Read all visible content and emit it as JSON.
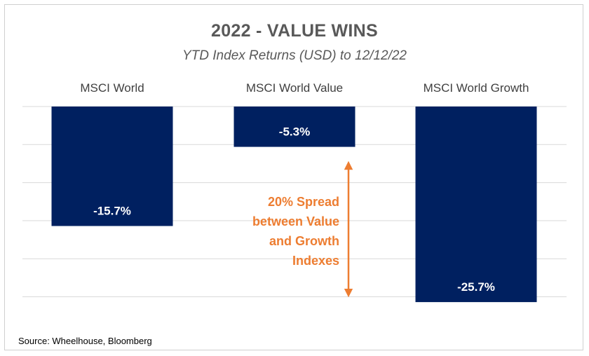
{
  "chart_data": {
    "type": "bar",
    "title": "2022 - VALUE WINS",
    "subtitle": "YTD Index Returns (USD) to 12/12/22",
    "categories": [
      "MSCI World",
      "MSCI World Value",
      "MSCI World Growth"
    ],
    "values": [
      -15.7,
      -5.3,
      -25.7
    ],
    "data_labels": [
      "-15.7%",
      "-5.3%",
      "-25.7%"
    ],
    "ylim": [
      -25,
      0
    ],
    "grid": true,
    "xlabel": "",
    "ylabel": "",
    "annotation": {
      "lines": [
        "20% Spread",
        "between Value",
        "and Growth",
        "Indexes"
      ]
    },
    "source": "Source: Wheelhouse, Bloomberg"
  },
  "colors": {
    "bar": "#002060",
    "annotation": "#ed7d31",
    "grid": "#d9d9d9",
    "title": "#595959"
  }
}
